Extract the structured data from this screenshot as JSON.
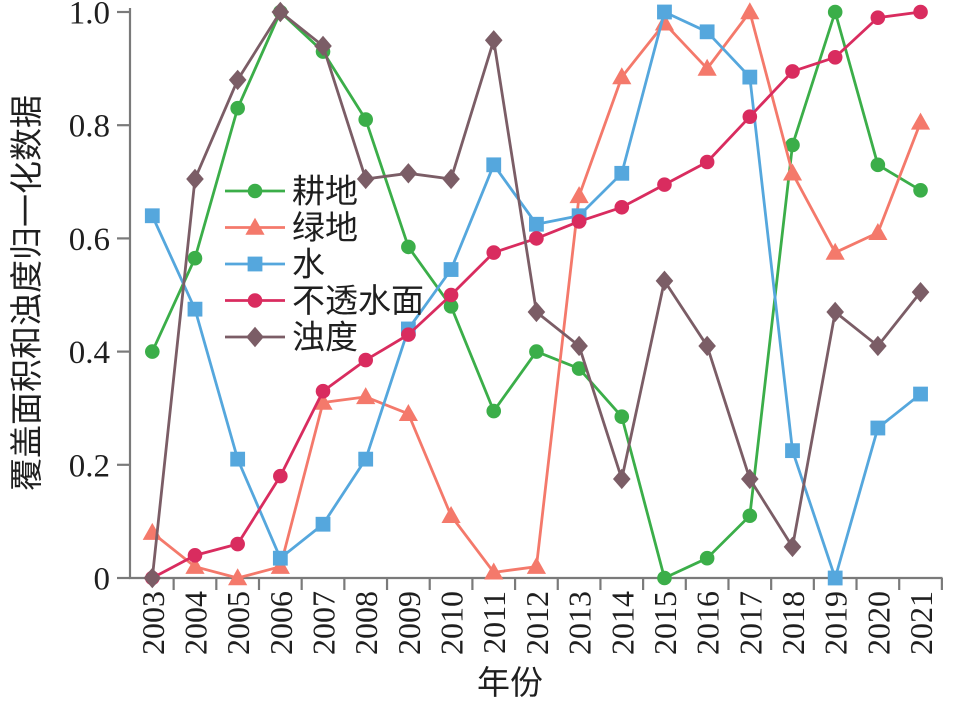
{
  "chart_data": {
    "type": "line",
    "title": "",
    "xlabel": "年份",
    "ylabel": "覆盖面积和浊度归一化数据",
    "x": [
      "2003",
      "2004",
      "2005",
      "2006",
      "2007",
      "2008",
      "2009",
      "2010",
      "2011",
      "2012",
      "2013",
      "2014",
      "2015",
      "2016",
      "2017",
      "2018",
      "2019",
      "2020",
      "2021"
    ],
    "ylim": [
      0,
      1.0
    ],
    "yticks": [
      0,
      0.2,
      0.4,
      0.6,
      0.8,
      1.0
    ],
    "ytick_labels": [
      "0",
      "0.2",
      "0.4",
      "0.6",
      "0.8",
      "1.0"
    ],
    "grid": false,
    "legend_position": "inside-upper-left",
    "axis_color": "#7a7a7a",
    "text_color": "#1f1f1f",
    "series": [
      {
        "id": "cropland",
        "name": "耕地",
        "marker": "circle",
        "color": "#3bae49",
        "values": [
          0.4,
          0.565,
          0.83,
          1.0,
          0.93,
          0.81,
          0.585,
          0.48,
          0.295,
          0.4,
          0.37,
          0.285,
          0.0,
          0.035,
          0.11,
          0.765,
          1.0,
          0.73,
          0.685
        ]
      },
      {
        "id": "greenspace",
        "name": "绿地",
        "marker": "triangle",
        "color": "#f4796b",
        "values": [
          0.08,
          0.02,
          0.0,
          0.02,
          0.31,
          0.32,
          0.29,
          0.11,
          0.01,
          0.02,
          0.675,
          0.885,
          0.98,
          0.9,
          1.0,
          0.715,
          0.575,
          0.61,
          0.805
        ]
      },
      {
        "id": "water",
        "name": "水",
        "marker": "square",
        "color": "#55a7dd",
        "values": [
          0.64,
          0.475,
          0.21,
          0.035,
          0.095,
          0.21,
          0.44,
          0.545,
          0.73,
          0.625,
          0.64,
          0.715,
          1.0,
          0.965,
          0.885,
          0.225,
          0.0,
          0.265,
          0.325
        ]
      },
      {
        "id": "impervious-surface",
        "name": "不透水面",
        "marker": "circle",
        "color": "#d92c5f",
        "values": [
          0.0,
          0.04,
          0.06,
          0.18,
          0.33,
          0.385,
          0.43,
          0.5,
          0.575,
          0.6,
          0.63,
          0.655,
          0.695,
          0.735,
          0.815,
          0.895,
          0.92,
          0.99,
          1.0
        ]
      },
      {
        "id": "turbidity",
        "name": "浊度",
        "marker": "diamond",
        "color": "#7b5d66",
        "values": [
          0.0,
          0.705,
          0.88,
          1.0,
          0.94,
          0.705,
          0.715,
          0.705,
          0.95,
          0.47,
          0.41,
          0.175,
          0.525,
          0.41,
          0.175,
          0.055,
          0.47,
          0.41,
          0.505
        ]
      }
    ]
  }
}
